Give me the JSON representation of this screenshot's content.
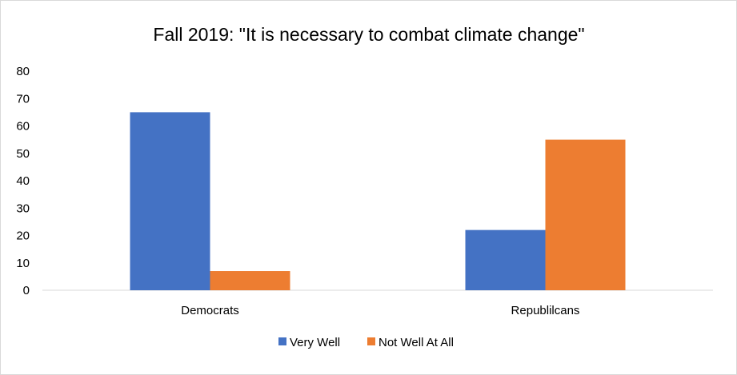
{
  "chart_data": {
    "type": "bar",
    "title": "Fall 2019: \"It is necessary to combat climate change\"",
    "xlabel": "",
    "ylabel": "",
    "categories": [
      "Democrats",
      "Republilcans"
    ],
    "series": [
      {
        "name": "Very Well",
        "values": [
          65,
          22
        ],
        "color": "#4472C4"
      },
      {
        "name": "Not Well At All",
        "values": [
          7,
          55
        ],
        "color": "#ED7D31"
      }
    ],
    "ylim": [
      0,
      80
    ],
    "yticks": [
      0,
      10,
      20,
      30,
      40,
      50,
      60,
      70,
      80
    ],
    "grid": false,
    "legend_position": "bottom"
  }
}
